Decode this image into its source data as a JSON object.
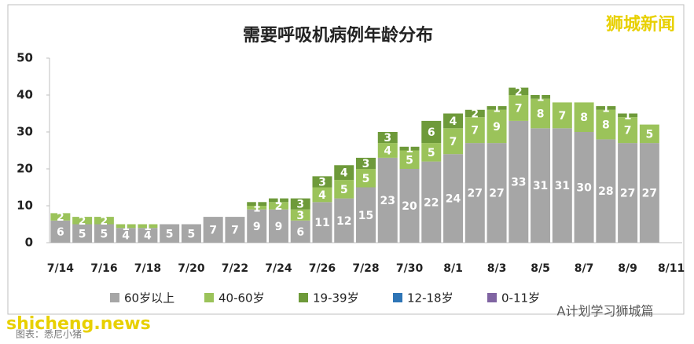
{
  "chart_data": {
    "type": "stacked_bar",
    "title": "需要呼吸机病例年龄分布",
    "categories": [
      "7/14",
      null,
      "7/16",
      null,
      "7/18",
      null,
      "7/20",
      null,
      "7/22",
      null,
      "7/24",
      null,
      "7/26",
      null,
      "7/28",
      null,
      "7/30",
      null,
      "8/1",
      null,
      "8/3",
      null,
      "8/5",
      null,
      "8/7",
      null,
      "8/9",
      null,
      "8/11"
    ],
    "series": [
      {
        "name": "60岁以上",
        "color": "#a6a6a6",
        "values": [
          6,
          5,
          5,
          4,
          4,
          5,
          5,
          7,
          7,
          9,
          9,
          6,
          11,
          12,
          15,
          23,
          20,
          22,
          24,
          27,
          27,
          33,
          31,
          31,
          30,
          28,
          27,
          27,
          null
        ]
      },
      {
        "name": "40-60岁",
        "color": "#9bc35a",
        "values": [
          2,
          2,
          2,
          1,
          1,
          null,
          null,
          null,
          null,
          1,
          2,
          3,
          4,
          5,
          5,
          4,
          5,
          5,
          7,
          7,
          9,
          7,
          8,
          7,
          8,
          8,
          7,
          5,
          null
        ]
      },
      {
        "name": "19-39岁",
        "color": "#6e9a3a",
        "values": [
          null,
          null,
          null,
          null,
          null,
          null,
          null,
          null,
          null,
          1,
          1,
          3,
          3,
          4,
          3,
          3,
          1,
          6,
          4,
          2,
          1,
          2,
          1,
          null,
          null,
          1,
          1,
          null,
          null
        ]
      },
      {
        "name": "12-18岁",
        "color": "#2e75b6",
        "values": [
          null,
          null,
          null,
          null,
          null,
          null,
          null,
          null,
          null,
          null,
          null,
          null,
          null,
          null,
          null,
          null,
          null,
          null,
          null,
          null,
          null,
          null,
          null,
          null,
          null,
          null,
          null,
          null,
          null
        ]
      },
      {
        "name": "0-11岁",
        "color": "#8064a2",
        "values": [
          null,
          null,
          null,
          null,
          null,
          null,
          null,
          null,
          null,
          null,
          null,
          null,
          null,
          null,
          null,
          null,
          null,
          null,
          null,
          null,
          null,
          null,
          null,
          null,
          null,
          null,
          null,
          null,
          null
        ]
      }
    ],
    "ylim": [
      0,
      50
    ],
    "yticks": [
      0,
      10,
      20,
      30,
      40,
      50
    ],
    "grid": false,
    "legend": "bottom"
  },
  "watermarks": {
    "top_right": "狮城新闻",
    "bottom_left": "shicheng.news",
    "bottom_right": "A计划学习狮城篇",
    "caption": "图表：悉尼小猪"
  }
}
